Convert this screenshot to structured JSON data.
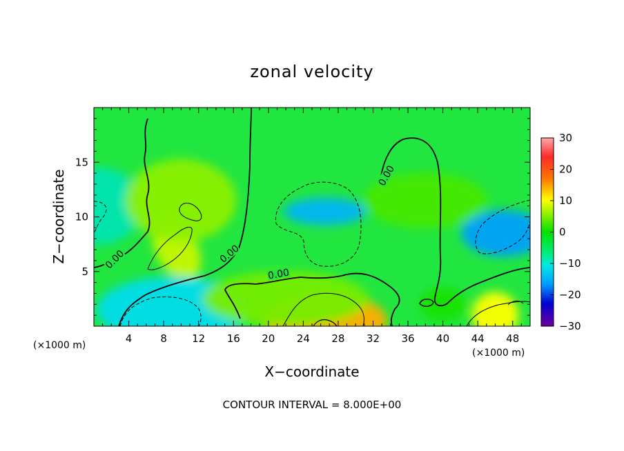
{
  "chart_data": {
    "type": "heatmap",
    "title": "zonal velocity",
    "xlabel": "X−coordinate",
    "ylabel": "Z−coordinate",
    "x_unit_left": "(×1000 m)",
    "x_unit_right": "(×1000 m)",
    "xlim": [
      0,
      50
    ],
    "ylim": [
      0,
      20
    ],
    "xticks": [
      4,
      8,
      12,
      16,
      20,
      24,
      28,
      32,
      36,
      40,
      44,
      48
    ],
    "xtick_labels": [
      "4",
      "8",
      "12",
      "16",
      "20",
      "24",
      "28",
      "32",
      "36",
      "40",
      "44",
      "48"
    ],
    "yticks": [
      5,
      10,
      15
    ],
    "ytick_labels": [
      "5",
      "10",
      "15"
    ],
    "colorbar": {
      "range": [
        -30,
        30
      ],
      "ticks": [
        30,
        20,
        10,
        0,
        -10,
        -20,
        -30
      ],
      "tick_labels": [
        "30",
        "20",
        "10",
        "0",
        "−10",
        "−20",
        "−30"
      ]
    },
    "contour_interval_text": "CONTOUR INTERVAL = 8.000E+00",
    "contour_labels": [
      "0.00",
      "0.00",
      "0.00",
      "0.00"
    ],
    "field_features": [
      {
        "x": 9.5,
        "z": 7.0,
        "value": 8
      },
      {
        "x": 26.5,
        "z": 0.5,
        "value": 14
      },
      {
        "x": 26.5,
        "z": 10.5,
        "value": -10
      },
      {
        "x": 9.0,
        "z": 1.5,
        "value": -8
      },
      {
        "x": 47.0,
        "z": 8.5,
        "value": -11
      },
      {
        "x": 0.5,
        "z": 11.0,
        "value": -5
      },
      {
        "x": 46.0,
        "z": 1.0,
        "value": 10
      },
      {
        "x": 10.0,
        "z": 11.5,
        "value": 6
      },
      {
        "x": 38.0,
        "z": 11.5,
        "value": 3
      },
      {
        "x": 22.0,
        "z": 2.5,
        "value": 5
      },
      {
        "x": 40.0,
        "z": 2.0,
        "value": 1
      }
    ],
    "grid": false,
    "legend": "colorbar right"
  }
}
